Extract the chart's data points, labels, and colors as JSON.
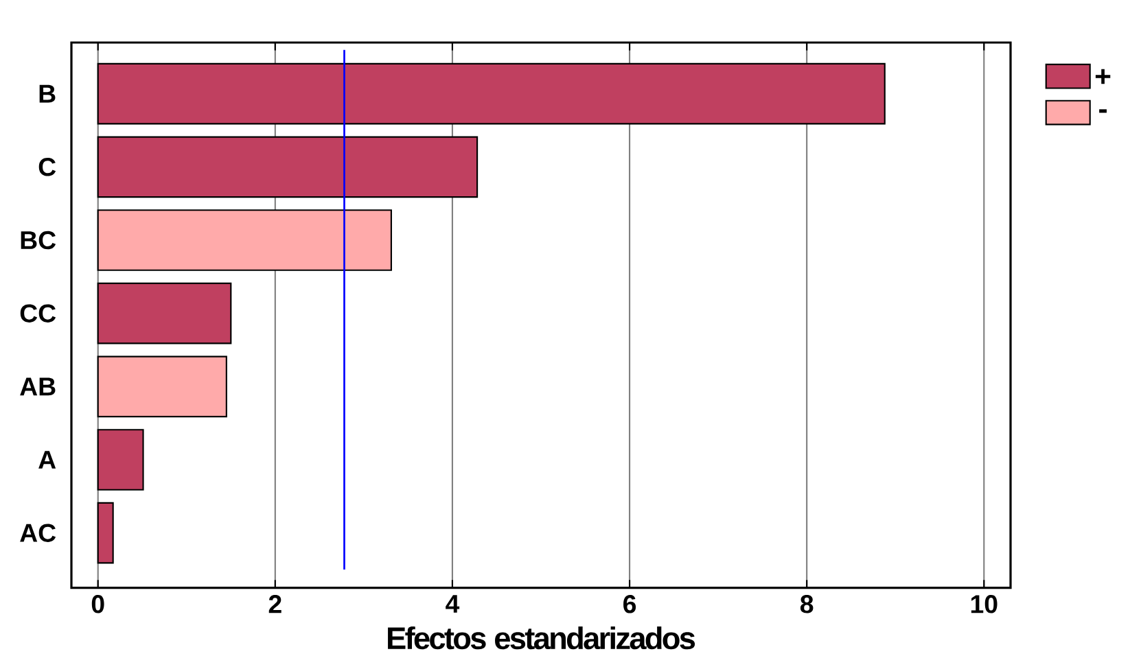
{
  "chart_data": {
    "type": "bar",
    "orientation": "horizontal",
    "xlabel": "Efectos estandarizados",
    "categories": [
      "B",
      "C",
      "BC",
      "CC",
      "AB",
      "A",
      "AC"
    ],
    "series": [
      {
        "name": "+",
        "color": "#c04060",
        "values": [
          8.88,
          4.28,
          null,
          1.5,
          null,
          0.51,
          0.17
        ]
      },
      {
        "name": "-",
        "color": "#ffaaaa",
        "values": [
          null,
          null,
          3.31,
          null,
          1.45,
          null,
          null
        ]
      }
    ],
    "xlim": [
      -0.3,
      10.3
    ],
    "xticks": [
      0,
      2,
      4,
      6,
      8,
      10
    ],
    "grid": "x",
    "legend": "top right",
    "ref_lines": [
      {
        "axis": "x",
        "value": 2.78,
        "color": "#0000ff"
      }
    ]
  }
}
